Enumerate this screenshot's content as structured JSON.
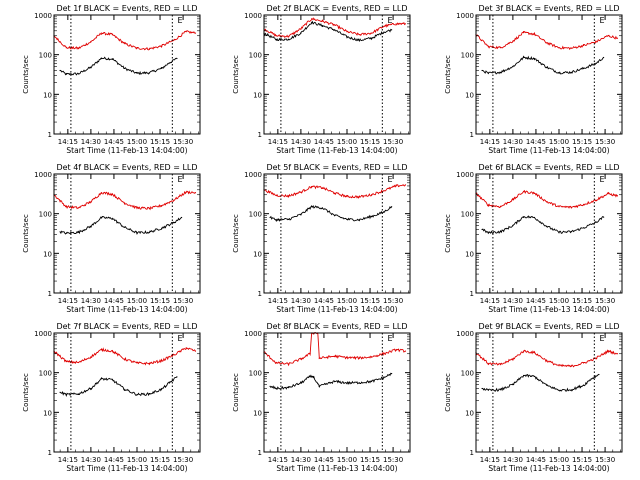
{
  "figure": {
    "ylabel": "Counts/sec",
    "xlabel": "Start Time (11-Feb-13 14:04:00)"
  },
  "colors": {
    "events": "#000000",
    "lld": "#e00000"
  },
  "chart_data": [
    {
      "type": "line",
      "title": "Det 1f BLACK = Events, RED = LLD",
      "xlabel": "Start Time (11-Feb-13 14:04:00)",
      "ylabel": "Counts/sec",
      "log_y": true,
      "ylim": [
        1,
        1000
      ],
      "xlim": [
        "14:06",
        "15:41"
      ],
      "x_ticks": [
        "14:15",
        "14:30",
        "14:45",
        "15:00",
        "15:15",
        "15:30"
      ],
      "y_ticks": [
        "1",
        "10",
        "100",
        "1000"
      ],
      "marker": "E",
      "grid": false,
      "series": [
        {
          "label": "Events",
          "color": "#000000",
          "x": [
            "14:10",
            "14:14",
            "14:22",
            "14:30",
            "14:37",
            "14:44",
            "14:52",
            "15:00",
            "15:08",
            "15:16",
            "15:21",
            "15:26"
          ],
          "y": [
            40,
            32,
            33,
            48,
            82,
            78,
            45,
            34,
            35,
            45,
            62,
            80
          ]
        },
        {
          "label": "LLD",
          "color": "#e00000",
          "x": [
            "14:06",
            "14:14",
            "14:22",
            "14:30",
            "14:37",
            "14:44",
            "14:52",
            "15:00",
            "15:08",
            "15:16",
            "15:24",
            "15:32",
            "15:38"
          ],
          "y": [
            300,
            150,
            145,
            210,
            350,
            320,
            190,
            145,
            140,
            165,
            230,
            380,
            350
          ]
        }
      ]
    },
    {
      "type": "line",
      "title": "Det 2f BLACK = Events, RED = LLD",
      "xlabel": "Start Time (11-Feb-13 14:04:00)",
      "ylabel": "Counts/sec",
      "log_y": true,
      "ylim": [
        1,
        1000
      ],
      "xlim": [
        "14:06",
        "15:41"
      ],
      "x_ticks": [
        "14:15",
        "14:30",
        "14:45",
        "15:00",
        "15:15",
        "15:30"
      ],
      "y_ticks": [
        "1",
        "10",
        "100",
        "1000"
      ],
      "marker": "E",
      "grid": false,
      "series": [
        {
          "label": "Events",
          "color": "#000000",
          "x": [
            "14:06",
            "14:14",
            "14:22",
            "14:30",
            "14:37",
            "14:44",
            "14:52",
            "15:00",
            "15:08",
            "15:16",
            "15:24",
            "15:29"
          ],
          "y": [
            350,
            240,
            245,
            350,
            650,
            540,
            420,
            280,
            230,
            260,
            370,
            420
          ]
        },
        {
          "label": "LLD",
          "color": "#e00000",
          "x": [
            "14:06",
            "14:14",
            "14:22",
            "14:30",
            "14:37",
            "14:44",
            "14:52",
            "15:00",
            "15:08",
            "15:16",
            "15:24",
            "15:32",
            "15:38"
          ],
          "y": [
            450,
            300,
            290,
            450,
            800,
            700,
            560,
            380,
            320,
            350,
            520,
            600,
            600
          ]
        }
      ]
    },
    {
      "type": "line",
      "title": "Det 3f BLACK = Events, RED = LLD",
      "xlabel": "Start Time (11-Feb-13 14:04:00)",
      "ylabel": "Counts/sec",
      "log_y": true,
      "ylim": [
        1,
        1000
      ],
      "xlim": [
        "14:06",
        "15:41"
      ],
      "x_ticks": [
        "14:15",
        "14:30",
        "14:45",
        "15:00",
        "15:15",
        "15:30"
      ],
      "y_ticks": [
        "1",
        "10",
        "100",
        "1000"
      ],
      "marker": "E",
      "grid": false,
      "series": [
        {
          "label": "Events",
          "color": "#000000",
          "x": [
            "14:10",
            "14:14",
            "14:22",
            "14:30",
            "14:37",
            "14:44",
            "14:52",
            "15:00",
            "15:08",
            "15:16",
            "15:24",
            "15:29"
          ],
          "y": [
            40,
            34,
            36,
            50,
            85,
            80,
            48,
            35,
            36,
            45,
            60,
            85
          ]
        },
        {
          "label": "LLD",
          "color": "#e00000",
          "x": [
            "14:06",
            "14:14",
            "14:22",
            "14:30",
            "14:37",
            "14:44",
            "14:52",
            "15:00",
            "15:08",
            "15:16",
            "15:24",
            "15:32",
            "15:38"
          ],
          "y": [
            320,
            160,
            150,
            220,
            360,
            330,
            200,
            150,
            145,
            170,
            210,
            300,
            260
          ]
        }
      ]
    },
    {
      "type": "line",
      "title": "Det 4f BLACK = Events, RED = LLD",
      "xlabel": "Start Time (11-Feb-13 14:04:00)",
      "ylabel": "Counts/sec",
      "log_y": true,
      "ylim": [
        1,
        1000
      ],
      "xlim": [
        "14:06",
        "15:41"
      ],
      "x_ticks": [
        "14:15",
        "14:30",
        "14:45",
        "15:00",
        "15:15",
        "15:30"
      ],
      "y_ticks": [
        "1",
        "10",
        "100",
        "1000"
      ],
      "marker": "E",
      "grid": false,
      "series": [
        {
          "label": "Events",
          "color": "#000000",
          "x": [
            "14:10",
            "14:14",
            "14:22",
            "14:30",
            "14:37",
            "14:44",
            "14:52",
            "15:00",
            "15:08",
            "15:16",
            "15:24",
            "15:29"
          ],
          "y": [
            35,
            32,
            34,
            48,
            80,
            76,
            45,
            33,
            34,
            43,
            60,
            80
          ]
        },
        {
          "label": "LLD",
          "color": "#e00000",
          "x": [
            "14:06",
            "14:14",
            "14:22",
            "14:30",
            "14:37",
            "14:44",
            "14:52",
            "15:00",
            "15:08",
            "15:16",
            "15:24",
            "15:32",
            "15:38"
          ],
          "y": [
            300,
            150,
            140,
            200,
            340,
            310,
            185,
            140,
            135,
            160,
            220,
            350,
            340
          ]
        }
      ]
    },
    {
      "type": "line",
      "title": "Det 5f BLACK = Events, RED = LLD",
      "xlabel": "Start Time (11-Feb-13 14:04:00)",
      "ylabel": "Counts/sec",
      "log_y": true,
      "ylim": [
        1,
        1000
      ],
      "xlim": [
        "14:06",
        "15:41"
      ],
      "x_ticks": [
        "14:15",
        "14:30",
        "14:45",
        "15:00",
        "15:15",
        "15:30"
      ],
      "y_ticks": [
        "1",
        "10",
        "100",
        "1000"
      ],
      "marker": "E",
      "grid": false,
      "series": [
        {
          "label": "Events",
          "color": "#000000",
          "x": [
            "14:10",
            "14:14",
            "14:22",
            "14:30",
            "14:37",
            "14:44",
            "14:52",
            "15:00",
            "15:08",
            "15:16",
            "15:24",
            "15:29"
          ],
          "y": [
            80,
            70,
            72,
            95,
            150,
            140,
            90,
            72,
            70,
            85,
            110,
            150
          ]
        },
        {
          "label": "LLD",
          "color": "#e00000",
          "x": [
            "14:06",
            "14:14",
            "14:22",
            "14:30",
            "14:37",
            "14:44",
            "14:52",
            "15:00",
            "15:08",
            "15:16",
            "15:24",
            "15:32",
            "15:38"
          ],
          "y": [
            400,
            290,
            280,
            350,
            480,
            450,
            330,
            270,
            265,
            300,
            380,
            500,
            530
          ]
        }
      ]
    },
    {
      "type": "line",
      "title": "Det 6f BLACK = Events, RED = LLD",
      "xlabel": "Start Time (11-Feb-13 14:04:00)",
      "ylabel": "Counts/sec",
      "log_y": true,
      "ylim": [
        1,
        1000
      ],
      "xlim": [
        "14:06",
        "15:41"
      ],
      "x_ticks": [
        "14:15",
        "14:30",
        "14:45",
        "15:00",
        "15:15",
        "15:30"
      ],
      "y_ticks": [
        "1",
        "10",
        "100",
        "1000"
      ],
      "marker": "E",
      "grid": false,
      "series": [
        {
          "label": "Events",
          "color": "#000000",
          "x": [
            "14:10",
            "14:14",
            "14:22",
            "14:30",
            "14:37",
            "14:44",
            "14:52",
            "15:00",
            "15:08",
            "15:16",
            "15:24",
            "15:29"
          ],
          "y": [
            40,
            33,
            35,
            50,
            84,
            80,
            48,
            34,
            35,
            44,
            60,
            82
          ]
        },
        {
          "label": "LLD",
          "color": "#e00000",
          "x": [
            "14:06",
            "14:14",
            "14:22",
            "14:30",
            "14:37",
            "14:44",
            "14:52",
            "15:00",
            "15:08",
            "15:16",
            "15:24",
            "15:32",
            "15:38"
          ],
          "y": [
            330,
            165,
            150,
            225,
            360,
            330,
            200,
            150,
            145,
            170,
            220,
            320,
            280
          ]
        }
      ]
    },
    {
      "type": "line",
      "title": "Det 7f BLACK = Events, RED = LLD",
      "xlabel": "Start Time (11-Feb-13 14:04:00)",
      "ylabel": "Counts/sec",
      "log_y": true,
      "ylim": [
        1,
        1000
      ],
      "xlim": [
        "14:06",
        "15:41"
      ],
      "x_ticks": [
        "14:15",
        "14:30",
        "14:45",
        "15:00",
        "15:15",
        "15:30"
      ],
      "y_ticks": [
        "1",
        "10",
        "100",
        "1000"
      ],
      "marker": "E",
      "grid": false,
      "series": [
        {
          "label": "Events",
          "color": "#000000",
          "x": [
            "14:10",
            "14:14",
            "14:22",
            "14:30",
            "14:37",
            "14:44",
            "14:52",
            "15:00",
            "15:08",
            "15:16",
            "15:21",
            "15:26"
          ],
          "y": [
            32,
            28,
            29,
            40,
            70,
            66,
            38,
            28,
            29,
            38,
            55,
            78
          ]
        },
        {
          "label": "LLD",
          "color": "#e00000",
          "x": [
            "14:06",
            "14:14",
            "14:22",
            "14:30",
            "14:37",
            "14:44",
            "14:52",
            "15:00",
            "15:08",
            "15:16",
            "15:24",
            "15:32",
            "15:38"
          ],
          "y": [
            350,
            190,
            180,
            250,
            380,
            350,
            220,
            175,
            170,
            200,
            280,
            420,
            350
          ]
        }
      ]
    },
    {
      "type": "line",
      "title": "Det 8f BLACK = Events, RED = LLD",
      "xlabel": "Start Time (11-Feb-13 14:04:00)",
      "ylabel": "Counts/sec",
      "log_y": true,
      "ylim": [
        1,
        1000
      ],
      "xlim": [
        "14:06",
        "15:41"
      ],
      "x_ticks": [
        "14:15",
        "14:30",
        "14:45",
        "15:00",
        "15:15",
        "15:30"
      ],
      "y_ticks": [
        "1",
        "10",
        "100",
        "1000"
      ],
      "marker": "E",
      "grid": false,
      "series": [
        {
          "label": "Events",
          "color": "#000000",
          "x": [
            "14:10",
            "14:14",
            "14:22",
            "14:30",
            "14:36",
            "14:38",
            "14:42",
            "14:52",
            "15:00",
            "15:08",
            "15:16",
            "15:24",
            "15:29"
          ],
          "y": [
            45,
            40,
            42,
            55,
            80,
            80,
            45,
            60,
            55,
            56,
            60,
            75,
            95
          ]
        },
        {
          "label": "LLD",
          "color": "#e00000",
          "x": [
            "14:06",
            "14:14",
            "14:22",
            "14:30",
            "14:36",
            "14:37",
            "14:41",
            "14:42",
            "14:52",
            "15:00",
            "15:08",
            "15:16",
            "15:24",
            "15:32",
            "15:38"
          ],
          "y": [
            330,
            175,
            165,
            220,
            300,
            1000,
            1000,
            230,
            260,
            240,
            235,
            250,
            300,
            380,
            350
          ]
        }
      ]
    },
    {
      "type": "line",
      "title": "Det 9f BLACK = Events, RED = LLD",
      "xlabel": "Start Time (11-Feb-13 14:04:00)",
      "ylabel": "Counts/sec",
      "log_y": true,
      "ylim": [
        1,
        1000
      ],
      "xlim": [
        "14:06",
        "15:41"
      ],
      "x_ticks": [
        "14:15",
        "14:30",
        "14:45",
        "15:00",
        "15:15",
        "15:30"
      ],
      "y_ticks": [
        "1",
        "10",
        "100",
        "1000"
      ],
      "marker": "E",
      "grid": false,
      "series": [
        {
          "label": "Events",
          "color": "#000000",
          "x": [
            "14:10",
            "14:14",
            "14:22",
            "14:30",
            "14:37",
            "14:44",
            "14:52",
            "15:00",
            "15:08",
            "15:16",
            "15:21",
            "15:26"
          ],
          "y": [
            40,
            36,
            37,
            50,
            85,
            80,
            48,
            36,
            37,
            48,
            70,
            90
          ]
        },
        {
          "label": "LLD",
          "color": "#e00000",
          "x": [
            "14:06",
            "14:14",
            "14:22",
            "14:30",
            "14:37",
            "14:44",
            "14:52",
            "15:00",
            "15:08",
            "15:16",
            "15:24",
            "15:32",
            "15:38"
          ],
          "y": [
            320,
            170,
            160,
            220,
            350,
            320,
            200,
            150,
            145,
            175,
            230,
            350,
            300
          ]
        }
      ]
    }
  ]
}
